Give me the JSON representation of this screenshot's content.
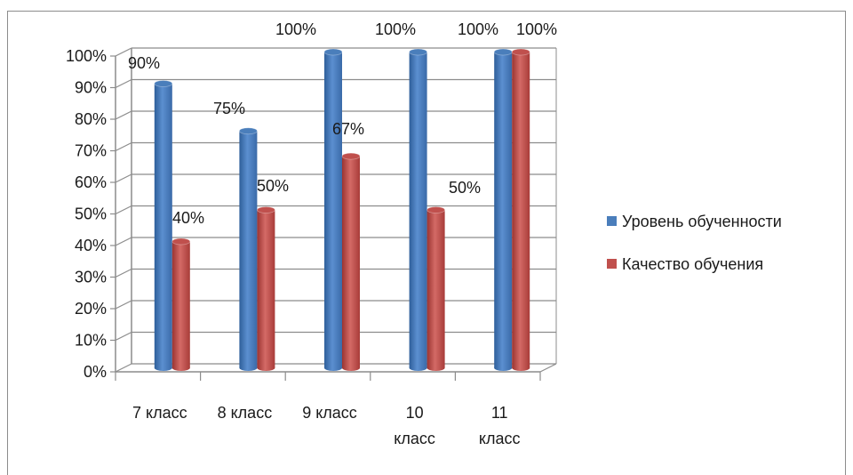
{
  "chart_data": {
    "type": "bar",
    "categories": [
      [
        "7 класс"
      ],
      [
        "8 класс"
      ],
      [
        "9 класс"
      ],
      [
        "10",
        "класс"
      ],
      [
        "11",
        "класс"
      ]
    ],
    "series": [
      {
        "name": "Уровень обученности",
        "values": [
          90,
          75,
          100,
          100,
          100
        ],
        "labels": [
          "90%",
          "75%",
          "100%",
          "100%",
          "100%"
        ],
        "color": "#4a7ebb"
      },
      {
        "name": "Качество обучения",
        "values": [
          40,
          50,
          67,
          50,
          100
        ],
        "labels": [
          "40%",
          "50%",
          "67%",
          "50%",
          "100%"
        ],
        "color": "#c0504d"
      }
    ],
    "yticks": [
      "0%",
      "10%",
      "20%",
      "30%",
      "40%",
      "50%",
      "60%",
      "70%",
      "80%",
      "90%",
      "100%"
    ],
    "ylim": [
      0,
      100
    ],
    "grid": true,
    "legend": "right"
  }
}
